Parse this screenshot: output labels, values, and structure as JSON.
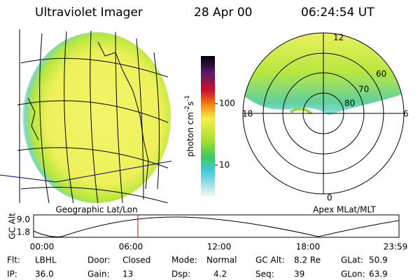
{
  "header": {
    "title": "Ultraviolet Imager",
    "date": "28 Apr 00",
    "time": "06:24:54 UT"
  },
  "map": {
    "caption": "Geographic Lat/Lon"
  },
  "colorbar": {
    "label": "photon cm",
    "exp1": "-2",
    "unit2": "s",
    "exp2": "-1",
    "ticks": [
      "100",
      "10"
    ]
  },
  "polar": {
    "caption": "Apex MLat/MLT",
    "mlt_labels": [
      "12",
      "18",
      "6",
      "0"
    ],
    "lat_labels": [
      "60",
      "70",
      "80"
    ]
  },
  "altitude": {
    "ylabel": "GC Alt",
    "yticks": [
      "9.0",
      "1.8"
    ],
    "xticks": [
      "00:00",
      "06:00",
      "12:00",
      "18:00",
      "23:59"
    ]
  },
  "footer": {
    "rows": [
      [
        {
          "label": "Flt:",
          "value": "LBHL"
        },
        {
          "label": "Door:",
          "value": "Closed"
        },
        {
          "label": "Mode:",
          "value": "Normal"
        },
        {
          "label": "GC Alt:",
          "value": "8.2 Re"
        },
        {
          "label": "GLat:",
          "value": "50.9"
        }
      ],
      [
        {
          "label": "IP:",
          "value": "36.0"
        },
        {
          "label": "Gain:",
          "value": "13"
        },
        {
          "label": "Dsp:",
          "value": "4.2"
        },
        {
          "label": "Seq:",
          "value": "39"
        },
        {
          "label": "GLon:",
          "value": "63.9"
        }
      ]
    ]
  }
}
